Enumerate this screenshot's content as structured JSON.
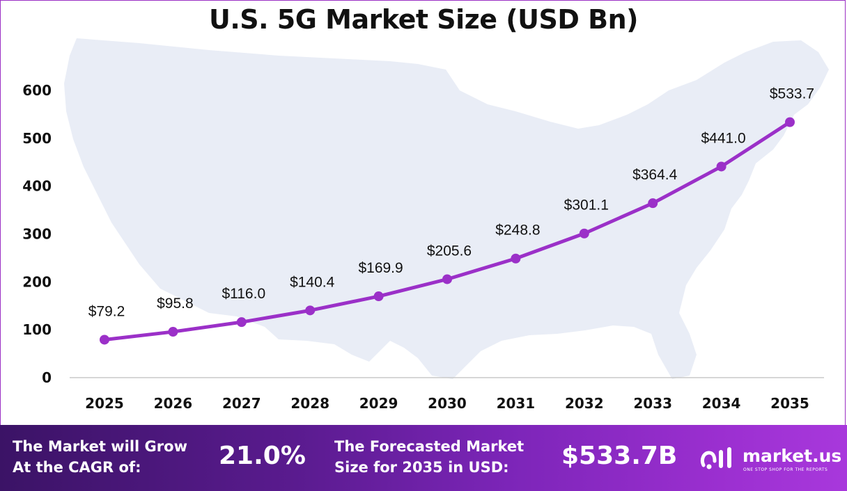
{
  "chart_data": {
    "type": "line",
    "title": "U.S. 5G Market Size (USD Bn)",
    "categories": [
      "2025",
      "2026",
      "2027",
      "2028",
      "2029",
      "2030",
      "2031",
      "2032",
      "2033",
      "2034",
      "2035"
    ],
    "values": [
      79.2,
      95.8,
      116.0,
      140.4,
      169.9,
      205.6,
      248.8,
      301.1,
      364.4,
      441.0,
      533.7
    ],
    "data_labels": [
      "$79.2",
      "$95.8",
      "$116.0",
      "$140.4",
      "$169.9",
      "$205.6",
      "$248.8",
      "$301.1",
      "$364.4",
      "$441.0",
      "$533.7"
    ],
    "y_ticks": [
      0,
      100,
      200,
      300,
      400,
      500,
      600
    ],
    "ylim": [
      0,
      600
    ],
    "grid": false,
    "line_color": "#9b30c8",
    "background_graphic": "us-map-silhouette"
  },
  "footer": {
    "cagr_label_line1": "The Market will Grow",
    "cagr_label_line2": "At the CAGR of:",
    "cagr_value": "21.0%",
    "forecast_label_line1": "The Forecasted Market",
    "forecast_label_line2": "Size for 2035 in USD:",
    "forecast_value": "$533.7B"
  },
  "brand": {
    "name": "market.us",
    "tagline": "ONE STOP SHOP FOR THE REPORTS",
    "icon": "market-us-logo-icon"
  },
  "colors": {
    "accent": "#9b30c8",
    "footer_start": "#3b1366",
    "footer_end": "#a838dc",
    "map_fill": "#e9edf6"
  }
}
